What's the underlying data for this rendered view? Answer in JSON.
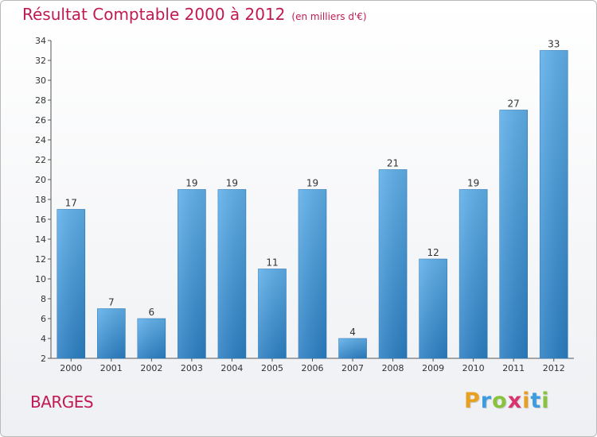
{
  "title": "Résultat Comptable 2000 à 2012",
  "subtitle": "(en milliers d'€)",
  "place_label": "BARGES",
  "logo": {
    "text": "Proxiti",
    "letters": [
      {
        "ch": "P",
        "color": "#e8a020"
      },
      {
        "ch": "r",
        "color": "#3d9be0"
      },
      {
        "ch": "o",
        "color": "#89c23c"
      },
      {
        "ch": "x",
        "color": "#d8336c"
      },
      {
        "ch": "i",
        "color": "#e8a020"
      },
      {
        "ch": "t",
        "color": "#3d9be0"
      },
      {
        "ch": "i",
        "color": "#89c23c"
      }
    ]
  },
  "colors": {
    "accent": "#c01a52",
    "bar_light": "#5fb0ea",
    "bar_dark": "#2b7fc4"
  },
  "chart_data": {
    "type": "bar",
    "title": "Résultat Comptable 2000 à 2012",
    "subtitle": "(en milliers d'€)",
    "xlabel": "",
    "ylabel": "",
    "ylim": [
      2,
      34
    ],
    "yticks": [
      2,
      4,
      6,
      8,
      10,
      12,
      14,
      16,
      18,
      20,
      22,
      24,
      26,
      28,
      30,
      32,
      34
    ],
    "grid": false,
    "categories": [
      "2000",
      "2001",
      "2002",
      "2003",
      "2004",
      "2005",
      "2006",
      "2007",
      "2008",
      "2009",
      "2010",
      "2011",
      "2012"
    ],
    "values": [
      17,
      7,
      6,
      19,
      19,
      11,
      19,
      4,
      21,
      12,
      19,
      27,
      33
    ]
  }
}
